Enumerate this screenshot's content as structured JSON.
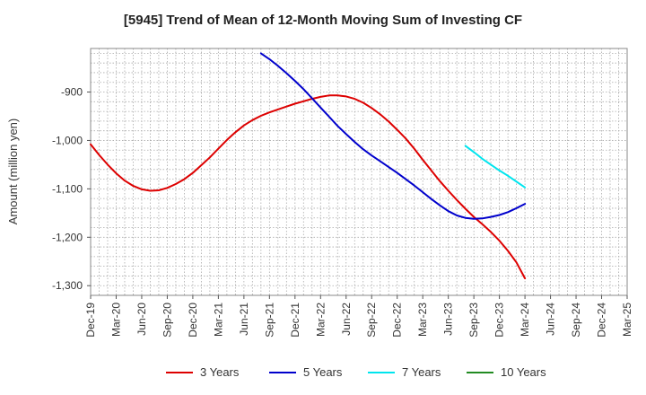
{
  "chart_data": {
    "type": "line",
    "title": "[5945]  Trend of Mean of 12-Month Moving Sum of Investing CF",
    "xlabel": "",
    "ylabel": "Amount (million yen)",
    "x_ticks": [
      "Dec-19",
      "Mar-20",
      "Jun-20",
      "Sep-20",
      "Dec-20",
      "Mar-21",
      "Jun-21",
      "Sep-21",
      "Dec-21",
      "Mar-22",
      "Jun-22",
      "Sep-22",
      "Dec-22",
      "Mar-23",
      "Jun-23",
      "Sep-23",
      "Dec-23",
      "Mar-24",
      "Jun-24",
      "Sep-24",
      "Dec-24",
      "Mar-25"
    ],
    "y_ticks": [
      -900,
      -1000,
      -1100,
      -1200,
      -1300
    ],
    "y_tick_labels": [
      "-900",
      "-1,000",
      "-1,100",
      "-1,200",
      "-1,300"
    ],
    "ylim": [
      -1320,
      -810
    ],
    "grid": true,
    "legend_position": "bottom",
    "series": [
      {
        "name": "3 Years",
        "color": "#dd0000",
        "x": [
          "Dec-19",
          "Jan-20",
          "Feb-20",
          "Mar-20",
          "Apr-20",
          "May-20",
          "Jun-20",
          "Jul-20",
          "Aug-20",
          "Sep-20",
          "Oct-20",
          "Nov-20",
          "Dec-20",
          "Jan-21",
          "Feb-21",
          "Mar-21",
          "Apr-21",
          "May-21",
          "Jun-21",
          "Jul-21",
          "Aug-21",
          "Sep-21",
          "Oct-21",
          "Nov-21",
          "Dec-21",
          "Jan-22",
          "Feb-22",
          "Mar-22",
          "Apr-22",
          "May-22",
          "Jun-22",
          "Jul-22",
          "Aug-22",
          "Sep-22",
          "Oct-22",
          "Nov-22",
          "Dec-22",
          "Jan-23",
          "Feb-23",
          "Mar-23",
          "Apr-23",
          "May-23",
          "Jun-23",
          "Jul-23",
          "Aug-23",
          "Sep-23",
          "Oct-23",
          "Nov-23",
          "Dec-23",
          "Jan-24",
          "Feb-24",
          "Mar-24"
        ],
        "values": [
          -1008,
          -1030,
          -1050,
          -1068,
          -1083,
          -1094,
          -1101,
          -1104,
          -1103,
          -1098,
          -1090,
          -1080,
          -1067,
          -1051,
          -1035,
          -1017,
          -999,
          -983,
          -969,
          -958,
          -949,
          -942,
          -936,
          -930,
          -924,
          -919,
          -914,
          -910,
          -907,
          -907,
          -909,
          -914,
          -922,
          -933,
          -946,
          -961,
          -978,
          -996,
          -1017,
          -1040,
          -1062,
          -1084,
          -1104,
          -1123,
          -1141,
          -1158,
          -1173,
          -1189,
          -1207,
          -1228,
          -1252,
          -1285
        ]
      },
      {
        "name": "5 Years",
        "color": "#0000cc",
        "x": [
          "Aug-21",
          "Sep-21",
          "Oct-21",
          "Nov-21",
          "Dec-21",
          "Jan-22",
          "Feb-22",
          "Mar-22",
          "Apr-22",
          "May-22",
          "Jun-22",
          "Jul-22",
          "Aug-22",
          "Sep-22",
          "Oct-22",
          "Nov-22",
          "Dec-22",
          "Jan-23",
          "Feb-23",
          "Mar-23",
          "Apr-23",
          "May-23",
          "Jun-23",
          "Jul-23",
          "Aug-23",
          "Sep-23",
          "Oct-23",
          "Nov-23",
          "Dec-23",
          "Jan-24",
          "Feb-24",
          "Mar-24"
        ],
        "values": [
          -820,
          -832,
          -846,
          -861,
          -877,
          -894,
          -913,
          -932,
          -951,
          -970,
          -987,
          -1003,
          -1018,
          -1031,
          -1043,
          -1055,
          -1067,
          -1080,
          -1093,
          -1107,
          -1121,
          -1134,
          -1146,
          -1155,
          -1160,
          -1162,
          -1161,
          -1158,
          -1154,
          -1148,
          -1140,
          -1131
        ]
      },
      {
        "name": "7 Years",
        "color": "#00e5ee",
        "x": [
          "Aug-23",
          "Sep-23",
          "Oct-23",
          "Nov-23",
          "Dec-23",
          "Jan-24",
          "Feb-24",
          "Mar-24"
        ],
        "values": [
          -1011,
          -1024,
          -1038,
          -1050,
          -1062,
          -1073,
          -1085,
          -1097
        ]
      },
      {
        "name": "10 Years",
        "color": "#228b22",
        "x": [],
        "values": []
      }
    ]
  }
}
